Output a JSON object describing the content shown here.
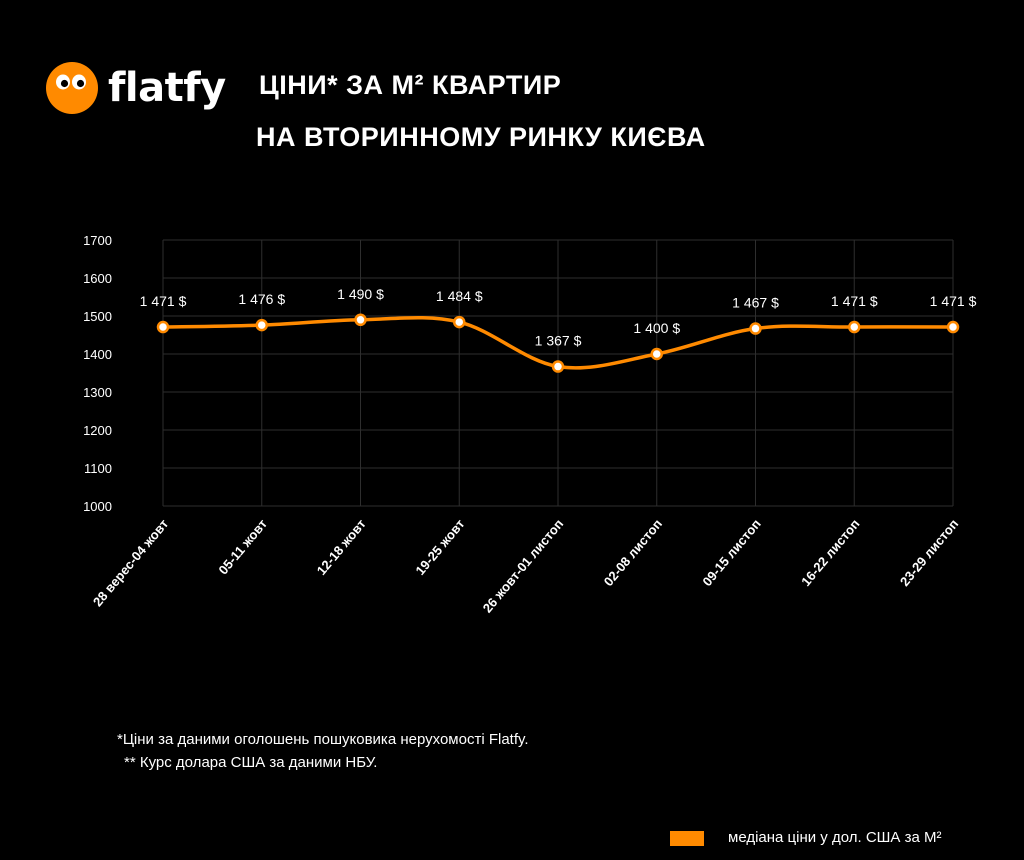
{
  "brand": {
    "name": "flatfy",
    "logo_color": "#ff8a00"
  },
  "title": {
    "line1": "ЦІНИ* ЗА М² КВАРТИР",
    "line2": "НА ВТОРИННОМУ РИНКУ КИЄВА"
  },
  "footnotes": {
    "note1": "*Ціни за даними оголошень пошуковика нерухомості Flatfy.",
    "note2": "** Курс долара США за даними НБУ."
  },
  "chart_data": {
    "type": "line",
    "categories": [
      "28 верес-04 жовт",
      "05-11 жовт",
      "12-18 жовт",
      "19-25 жовт",
      "26 жовт-01 листоп",
      "02-08 листоп",
      "09-15 листоп",
      "16-22 листоп",
      "23-29 листоп"
    ],
    "series": [
      {
        "name": "медіана ціни у дол. США за М²",
        "values": [
          1471,
          1476,
          1490,
          1484,
          1367,
          1400,
          1467,
          1471,
          1471
        ],
        "labels": [
          "1 471 $",
          "1 476 $",
          "1 490 $",
          "1 484 $",
          "1 367 $",
          "1 400 $",
          "1 467 $",
          "1 471 $",
          "1 471 $"
        ],
        "color": "#ff8a00"
      }
    ],
    "ylim": [
      1000,
      1700
    ],
    "yticks": [
      1000,
      1100,
      1200,
      1300,
      1400,
      1500,
      1600,
      1700
    ],
    "grid": true,
    "legend_position": "bottom-right",
    "gridline_color": "#2e2e2e"
  }
}
